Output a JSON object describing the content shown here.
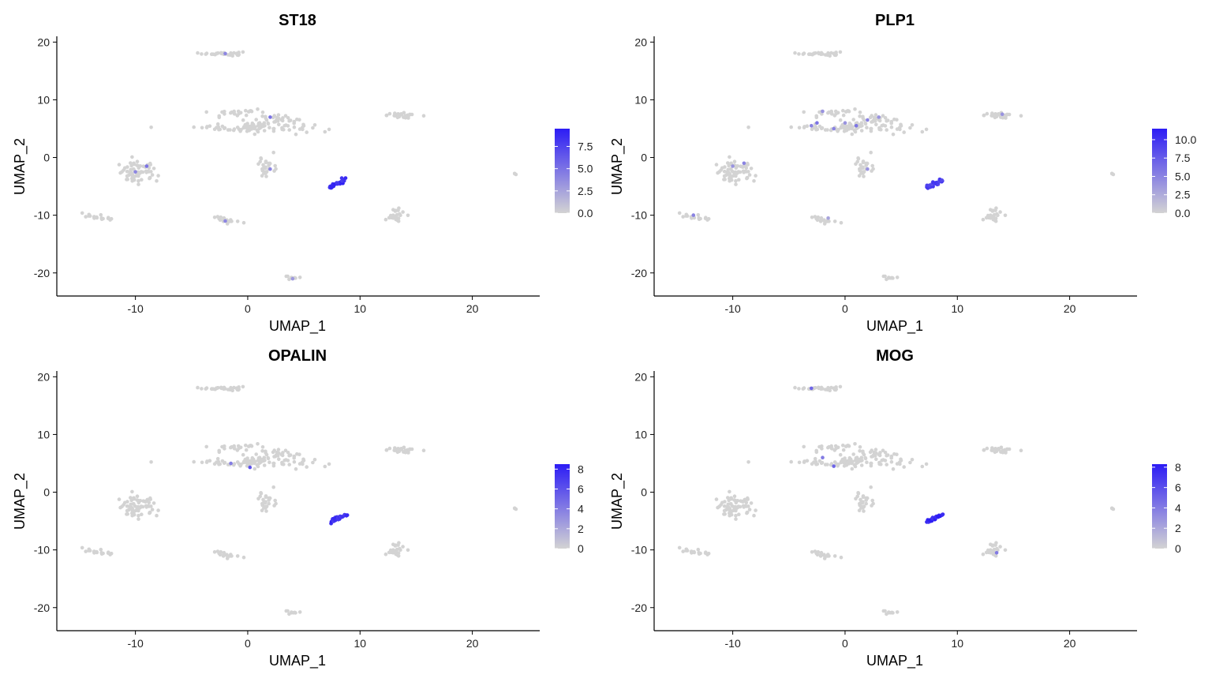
{
  "chart_data": [
    {
      "type": "scatter",
      "title": "ST18",
      "xlabel": "UMAP_1",
      "ylabel": "UMAP_2",
      "xlim": [
        -17,
        26
      ],
      "ylim": [
        -24,
        21
      ],
      "x_ticks": [
        -10,
        0,
        10,
        20
      ],
      "y_ticks": [
        -20,
        -10,
        0,
        10,
        20
      ],
      "grid": false,
      "legend": "right",
      "color_low": "#d3d3d3",
      "color_high": "#2c1cf5",
      "color_scale_max": 9.5,
      "color_scale_ticks": [
        "0.0",
        "2.5",
        "5.0",
        "7.5"
      ],
      "color_scale_tick_values": [
        0,
        2.5,
        5,
        7.5
      ],
      "highlight_cluster": "8,-4.5",
      "highlight_level": 8.5,
      "sprinkles": [
        [
          -2,
          18,
          4
        ],
        [
          2,
          7,
          5
        ],
        [
          -10,
          -2.5,
          4
        ],
        [
          -9,
          -1.5,
          5
        ],
        [
          2,
          -2,
          4
        ],
        [
          -2,
          -11,
          4
        ],
        [
          4,
          -21,
          3
        ]
      ]
    },
    {
      "type": "scatter",
      "title": "PLP1",
      "xlabel": "UMAP_1",
      "ylabel": "UMAP_2",
      "xlim": [
        -17,
        26
      ],
      "ylim": [
        -24,
        21
      ],
      "x_ticks": [
        -10,
        0,
        10,
        20
      ],
      "y_ticks": [
        -20,
        -10,
        0,
        10,
        20
      ],
      "grid": false,
      "legend": "right",
      "color_low": "#d3d3d3",
      "color_high": "#2c1cf5",
      "color_scale_max": 11.5,
      "color_scale_ticks": [
        "0.0",
        "2.5",
        "5.0",
        "7.5",
        "10.0"
      ],
      "color_scale_tick_values": [
        0,
        2.5,
        5,
        7.5,
        10
      ],
      "highlight_cluster": "8,-4.5",
      "highlight_level": 9.5,
      "sprinkles": [
        [
          -3,
          5.5,
          5
        ],
        [
          -2.5,
          6,
          6
        ],
        [
          -1,
          5,
          5
        ],
        [
          0,
          6,
          4
        ],
        [
          1,
          5.5,
          6
        ],
        [
          2,
          6.5,
          5
        ],
        [
          3,
          7,
          4
        ],
        [
          -2,
          8,
          4
        ],
        [
          -10,
          -1.5,
          4
        ],
        [
          -9,
          -1,
          5
        ],
        [
          -13.5,
          -10,
          5
        ],
        [
          2,
          -2,
          4
        ],
        [
          14,
          7.5,
          4
        ],
        [
          -1.5,
          -10.5,
          3
        ]
      ]
    },
    {
      "type": "scatter",
      "title": "OPALIN",
      "xlabel": "UMAP_1",
      "ylabel": "UMAP_2",
      "xlim": [
        -17,
        26
      ],
      "ylim": [
        -24,
        21
      ],
      "x_ticks": [
        -10,
        0,
        10,
        20
      ],
      "y_ticks": [
        -20,
        -10,
        0,
        10,
        20
      ],
      "grid": false,
      "legend": "right",
      "color_low": "#d3d3d3",
      "color_high": "#2c1cf5",
      "color_scale_max": 8.5,
      "color_scale_ticks": [
        "0",
        "2",
        "4",
        "6",
        "8"
      ],
      "color_scale_tick_values": [
        0,
        2,
        4,
        6,
        8
      ],
      "highlight_cluster": "8,-4.5",
      "highlight_level": 7.5,
      "sprinkles": [
        [
          0.2,
          4.3,
          6
        ],
        [
          -1.5,
          5,
          4
        ]
      ]
    },
    {
      "type": "scatter",
      "title": "MOG",
      "xlabel": "UMAP_1",
      "ylabel": "UMAP_2",
      "xlim": [
        -17,
        26
      ],
      "ylim": [
        -24,
        21
      ],
      "x_ticks": [
        -10,
        0,
        10,
        20
      ],
      "y_ticks": [
        -20,
        -10,
        0,
        10,
        20
      ],
      "grid": false,
      "legend": "right",
      "color_low": "#d3d3d3",
      "color_high": "#2c1cf5",
      "color_scale_max": 8.3,
      "color_scale_ticks": [
        "0",
        "2",
        "4",
        "6",
        "8"
      ],
      "color_scale_tick_values": [
        0,
        2,
        4,
        6,
        8
      ],
      "highlight_cluster": "8,-4.5",
      "highlight_level": 7.8,
      "sprinkles": [
        [
          -3,
          18,
          5
        ],
        [
          -1,
          4.5,
          5
        ],
        [
          -2,
          6,
          4
        ],
        [
          13.5,
          -10.5,
          4
        ]
      ]
    }
  ]
}
